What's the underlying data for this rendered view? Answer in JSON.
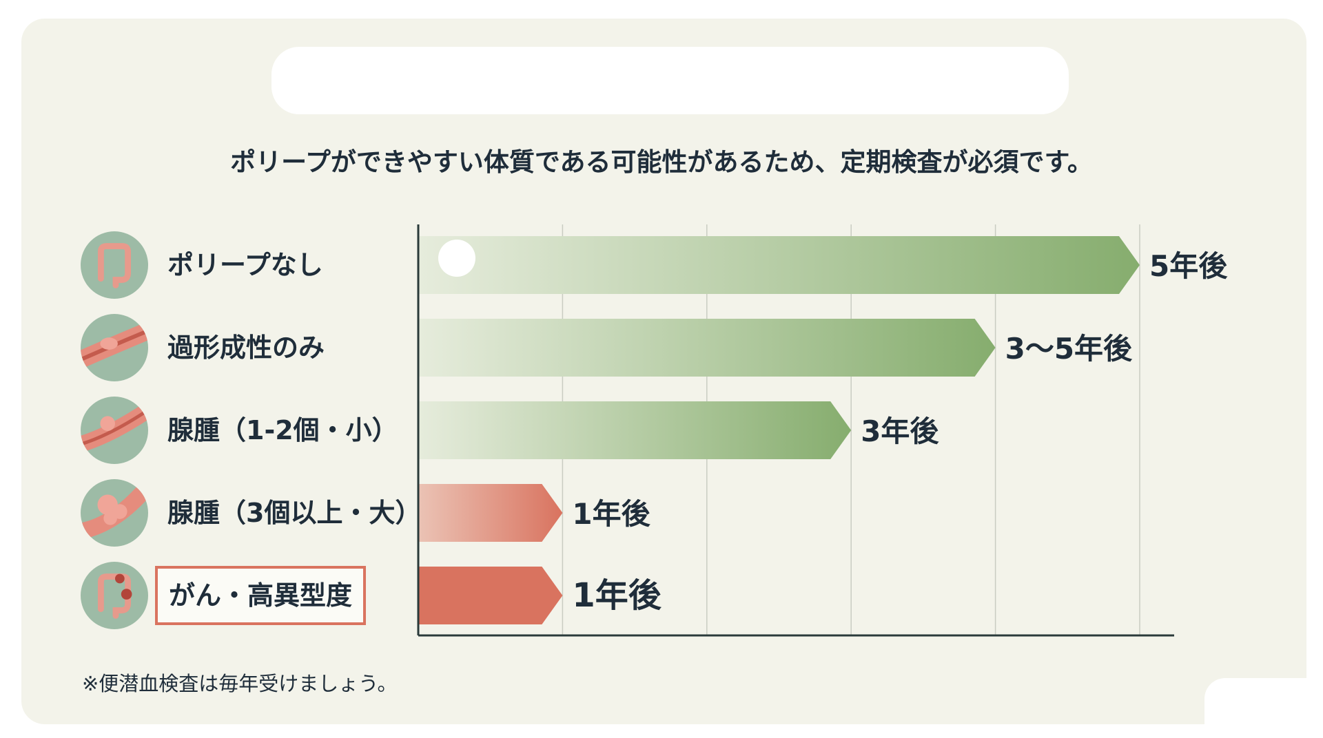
{
  "subtitle": "ポリープができやすい体質である可能性があるため、定期検査が必須です。",
  "footnote": "※便潜血検査は毎年受けましょう。",
  "colors": {
    "green": "#86ad6e",
    "green_light": "#e6ecdc",
    "red": "#d9735f",
    "red_light": "#ebc3b5",
    "text": "#1f2d3a",
    "axis": "#2a3a3a",
    "grid": "#c9ccc2"
  },
  "chart_data": {
    "type": "bar",
    "orientation": "horizontal",
    "categories": [
      "ポリープなし",
      "過形成性のみ",
      "腺腫（1-2個・小）",
      "腺腫（3個以上・大）",
      "がん・高異型度"
    ],
    "icons": [
      "colon-icon",
      "hyperplastic-polyp-icon",
      "small-adenoma-icon",
      "large-adenoma-icon",
      "cancer-colon-icon"
    ],
    "values": [
      5,
      4,
      3,
      1,
      1
    ],
    "value_labels": [
      "5年後",
      "3〜5年後",
      "3年後",
      "1年後",
      "1年後"
    ],
    "bar_colors": [
      "green",
      "green",
      "green",
      "red",
      "red"
    ],
    "highlighted": [
      false,
      false,
      false,
      false,
      true
    ],
    "xlim": [
      0,
      5
    ],
    "grid": true,
    "unit": "years"
  }
}
